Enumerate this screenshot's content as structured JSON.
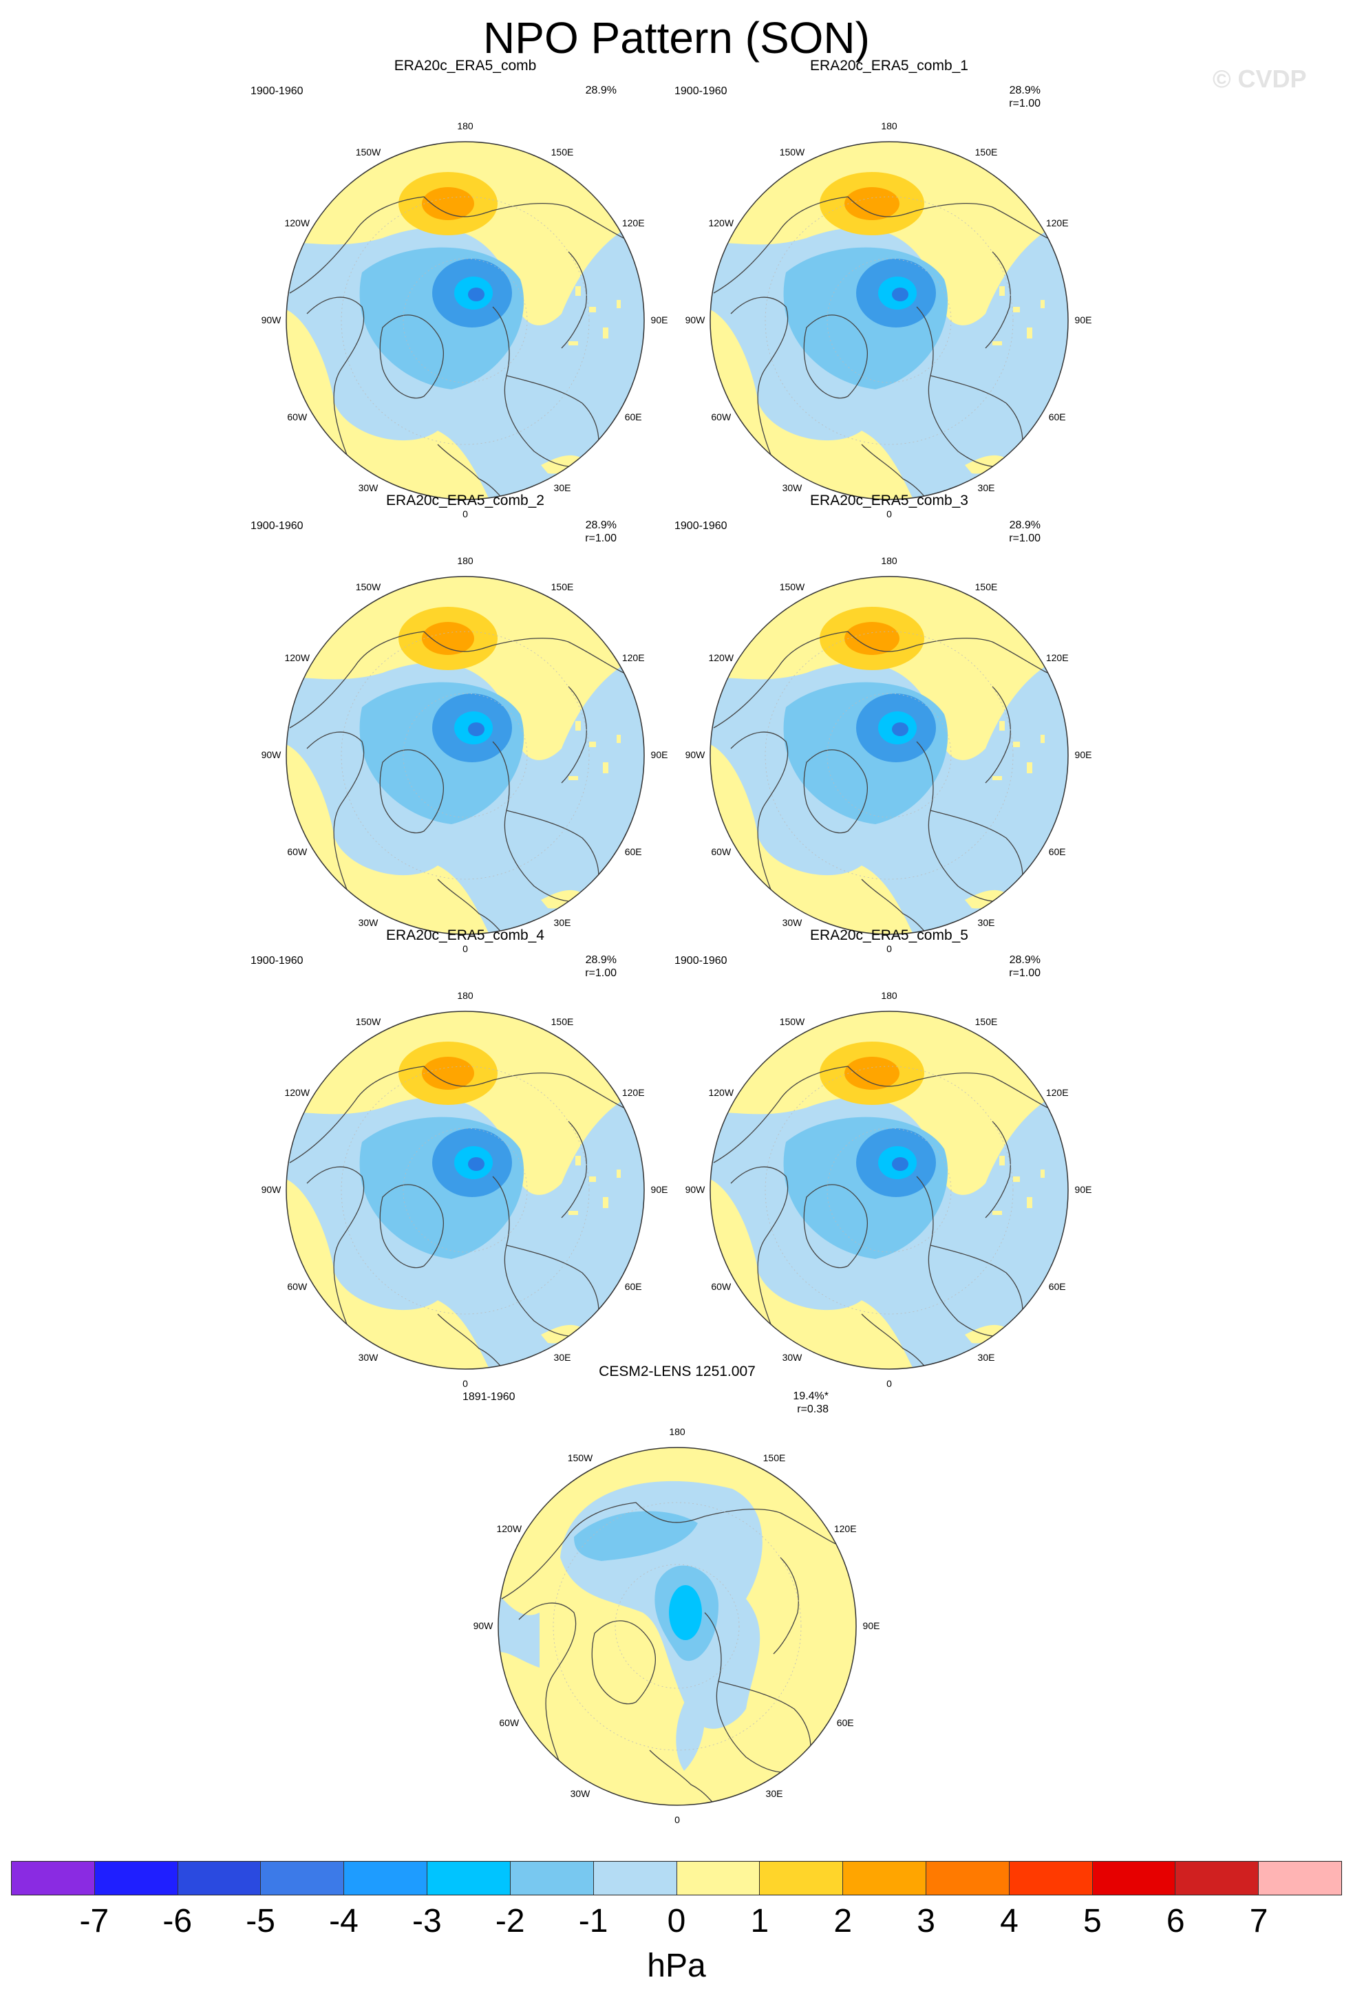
{
  "title": "NPO Pattern (SON)",
  "watermark": "© CVDP",
  "lon_labels": {
    "l180": "180",
    "l150w": "150W",
    "l150e": "150E",
    "l120w": "120W",
    "l120e": "120E",
    "l90w": "90W",
    "l90e": "90E",
    "l60w": "60W",
    "l60e": "60E",
    "l30w": "30W",
    "l30e": "30E",
    "l0": "0"
  },
  "panels": [
    {
      "title": "ERA20c_ERA5_comb",
      "period": "1900-1960",
      "pct": "28.9%",
      "r": ""
    },
    {
      "title": "ERA20c_ERA5_comb_1",
      "period": "1900-1960",
      "pct": "28.9%",
      "r": "r=1.00"
    },
    {
      "title": "ERA20c_ERA5_comb_2",
      "period": "1900-1960",
      "pct": "28.9%",
      "r": "r=1.00"
    },
    {
      "title": "ERA20c_ERA5_comb_3",
      "period": "1900-1960",
      "pct": "28.9%",
      "r": "r=1.00"
    },
    {
      "title": "ERA20c_ERA5_comb_4",
      "period": "1900-1960",
      "pct": "28.9%",
      "r": "r=1.00"
    },
    {
      "title": "ERA20c_ERA5_comb_5",
      "period": "1900-1960",
      "pct": "28.9%",
      "r": "r=1.00"
    },
    {
      "title": "CESM2-LENS 1251.007",
      "period": "1891-1960",
      "pct": "19.4%*",
      "r": "r=0.38"
    }
  ],
  "colorbar": {
    "units": "hPa",
    "ticks": [
      "-7",
      "-6",
      "-5",
      "-4",
      "-3",
      "-2",
      "-1",
      "0",
      "1",
      "2",
      "3",
      "4",
      "5",
      "6",
      "7"
    ],
    "colors": [
      "#8a2be2",
      "#1f1fff",
      "#2a4ae0",
      "#3c7ae8",
      "#1e9cff",
      "#00c4ff",
      "#78c8f0",
      "#b4dcf4",
      "#fff799",
      "#ffd52a",
      "#ffa500",
      "#ff7a00",
      "#ff3a00",
      "#e60000",
      "#d02020",
      "#ffb4b4"
    ]
  },
  "chart_data": {
    "type": "heatmap",
    "projection": "polar stereographic (Northern Hemisphere)",
    "units": "hPa",
    "contour_levels": [
      -7,
      -6,
      -5,
      -4,
      -3,
      -2,
      -1,
      0,
      1,
      2,
      3,
      4,
      5,
      6,
      7
    ],
    "panels": [
      {
        "name": "ERA20c_ERA5_comb",
        "period": "1900-1960",
        "variance_explained": "28.9%",
        "pattern_correlation": null
      },
      {
        "name": "ERA20c_ERA5_comb_1",
        "period": "1900-1960",
        "variance_explained": "28.9%",
        "pattern_correlation": 1.0
      },
      {
        "name": "ERA20c_ERA5_comb_2",
        "period": "1900-1960",
        "variance_explained": "28.9%",
        "pattern_correlation": 1.0
      },
      {
        "name": "ERA20c_ERA5_comb_3",
        "period": "1900-1960",
        "variance_explained": "28.9%",
        "pattern_correlation": 1.0
      },
      {
        "name": "ERA20c_ERA5_comb_4",
        "period": "1900-1960",
        "variance_explained": "28.9%",
        "pattern_correlation": 1.0
      },
      {
        "name": "ERA20c_ERA5_comb_5",
        "period": "1900-1960",
        "variance_explained": "28.9%",
        "pattern_correlation": 1.0
      },
      {
        "name": "CESM2-LENS 1251.007",
        "period": "1891-1960",
        "variance_explained": "19.4%*",
        "pattern_correlation": 0.38
      }
    ]
  }
}
